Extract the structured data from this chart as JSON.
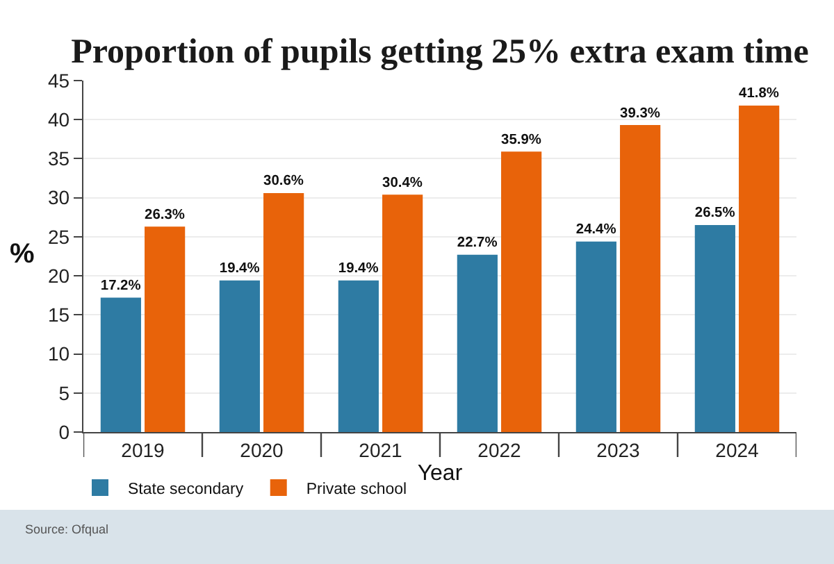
{
  "chart_data": {
    "type": "bar",
    "title": "Proportion of pupils getting 25% extra exam time",
    "xlabel": "Year",
    "ylabel": "%",
    "categories": [
      "2019",
      "2020",
      "2021",
      "2022",
      "2023",
      "2024"
    ],
    "series": [
      {
        "name": "State secondary",
        "color": "#2e7ba3",
        "values": [
          17.2,
          19.4,
          19.4,
          22.7,
          24.4,
          26.5
        ],
        "value_labels": [
          "17.2%",
          "19.4%",
          "19.4%",
          "22.7%",
          "24.4%",
          "26.5%"
        ]
      },
      {
        "name": "Private school",
        "color": "#e8630a",
        "values": [
          26.3,
          30.6,
          30.4,
          35.9,
          39.3,
          41.8
        ],
        "value_labels": [
          "26.3%",
          "30.6%",
          "30.4%",
          "35.9%",
          "39.3%",
          "41.8%"
        ]
      }
    ],
    "ylim": [
      0,
      45
    ],
    "yticks": [
      0,
      5,
      10,
      15,
      20,
      25,
      30,
      35,
      40,
      45
    ],
    "grid": "y",
    "legend": "bottom left",
    "annotations": [
      "Source: Ofqual"
    ]
  }
}
